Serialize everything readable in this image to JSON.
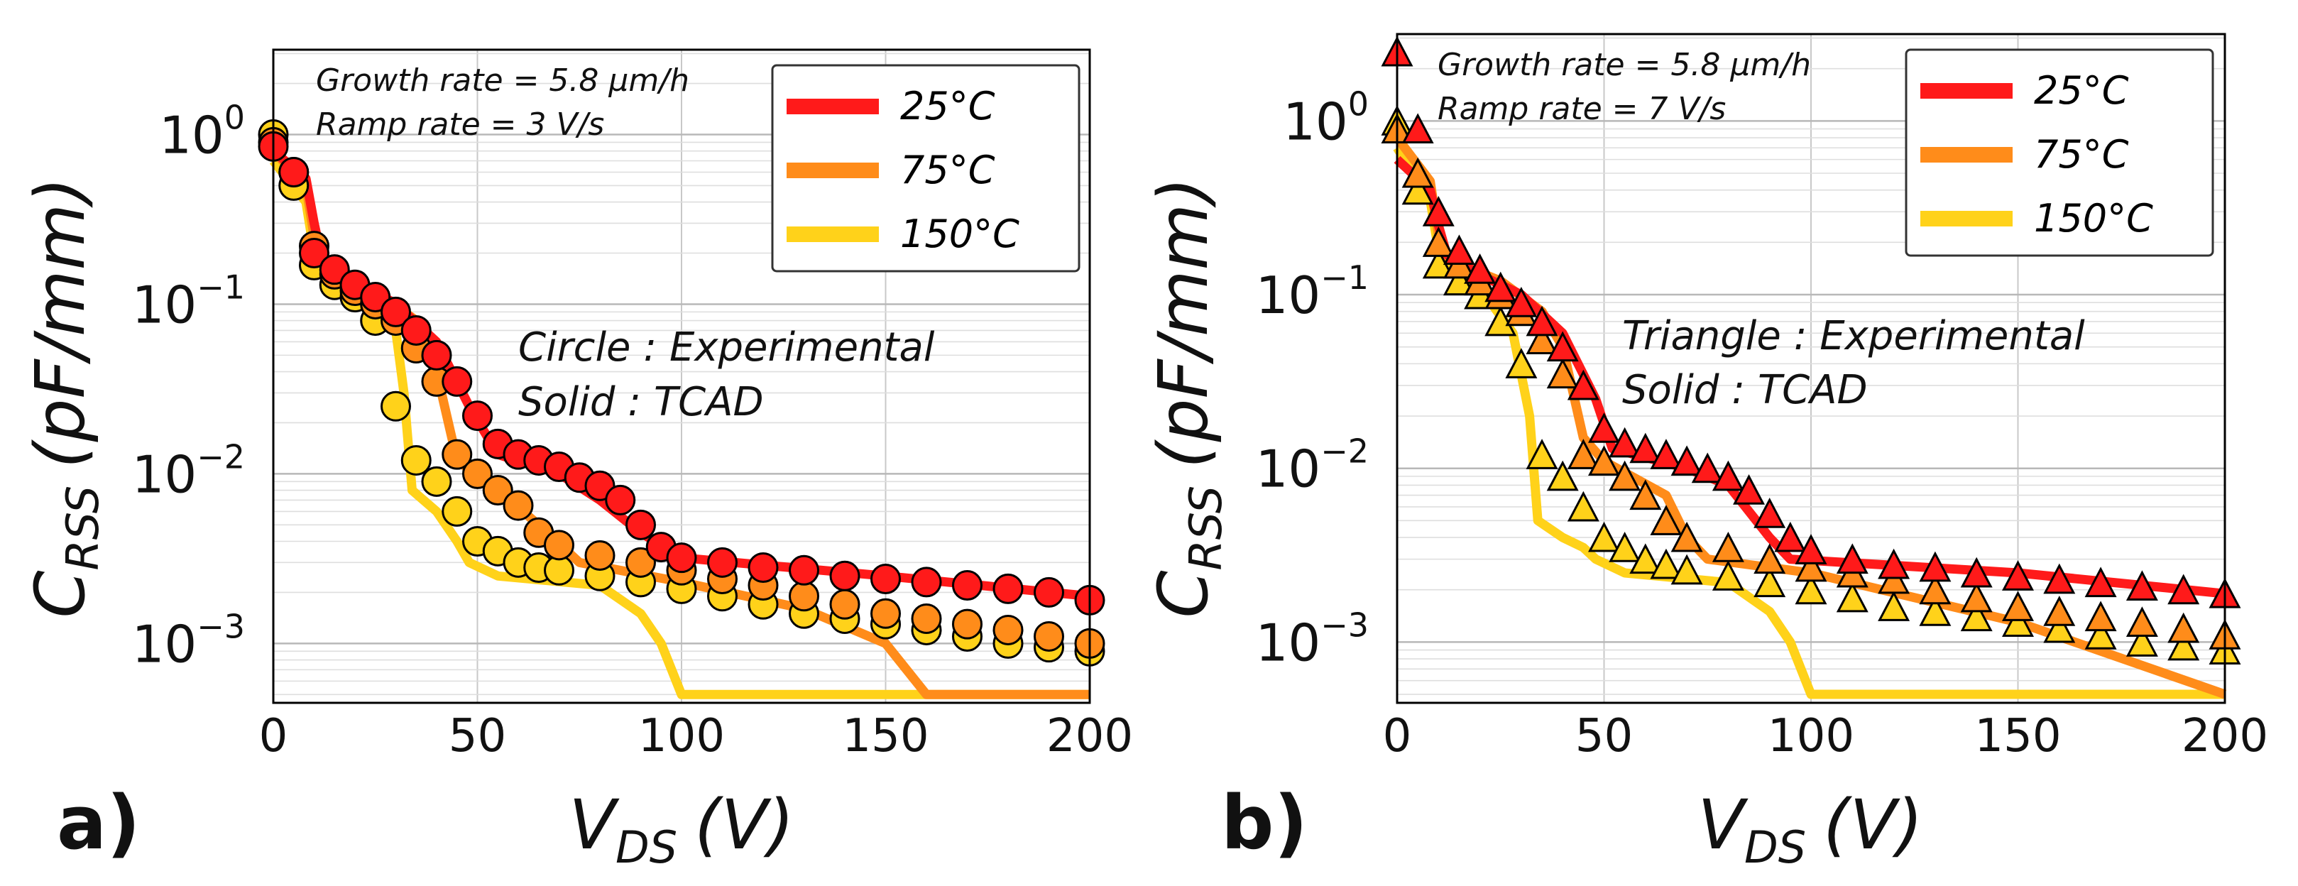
{
  "chart_data": [
    {
      "type": "line",
      "panel_label": "a)",
      "ylabel_main": "C",
      "ylabel_sub": "RSS",
      "ylabel_unit": "(pF/mm)",
      "xlabel_main": "V",
      "xlabel_sub": "DS",
      "xlabel_unit": "(V)",
      "xlim": [
        0,
        200
      ],
      "ylim_log10": [
        -3.35,
        0.5
      ],
      "xticks": [
        0,
        50,
        100,
        150,
        200
      ],
      "xtick_labels": [
        "0",
        "50",
        "100",
        "150",
        "200"
      ],
      "ytick_exps": [
        0,
        -1,
        -2,
        -3
      ],
      "ytick_labels": [
        {
          "base": "10",
          "exp": "0"
        },
        {
          "base": "10",
          "exp": "−1"
        },
        {
          "base": "10",
          "exp": "−2"
        },
        {
          "base": "10",
          "exp": "−3"
        }
      ],
      "info_lines": [
        "Growth rate = 5.8 μm/h",
        "Ramp rate = 3 V/s"
      ],
      "annotation_lines": [
        "Circle : Experimental",
        "Solid : TCAD"
      ],
      "marker": "circle",
      "legend_position": "top-right",
      "series": [
        {
          "name": "25°C",
          "color": "#ff1a1a",
          "tcad": {
            "x": [
              0,
              8,
              10,
              12,
              20,
              30,
              40,
              48,
              55,
              70,
              80,
              90,
              100,
              150,
              200
            ],
            "y": [
              0.8,
              0.55,
              0.3,
              0.18,
              0.14,
              0.1,
              0.06,
              0.025,
              0.013,
              0.01,
              0.007,
              0.0045,
              0.0032,
              0.0025,
              0.0019
            ]
          },
          "exp": {
            "x": [
              0,
              5,
              10,
              15,
              20,
              25,
              30,
              35,
              40,
              45,
              50,
              55,
              60,
              65,
              70,
              75,
              80,
              85,
              90,
              95,
              100,
              110,
              120,
              130,
              140,
              150,
              160,
              170,
              180,
              190,
              200
            ],
            "y": [
              0.85,
              0.6,
              0.2,
              0.16,
              0.13,
              0.11,
              0.09,
              0.07,
              0.05,
              0.035,
              0.022,
              0.015,
              0.013,
              0.012,
              0.011,
              0.0095,
              0.0085,
              0.007,
              0.005,
              0.0037,
              0.0032,
              0.003,
              0.0028,
              0.0027,
              0.0025,
              0.0024,
              0.0023,
              0.0022,
              0.0021,
              0.002,
              0.0018
            ]
          }
        },
        {
          "name": "75°C",
          "color": "#ff8c1a",
          "tcad": {
            "x": [
              0,
              8,
              10,
              12,
              25,
              35,
              40,
              45,
              55,
              65,
              75,
              100,
              130,
              150,
              160,
              200
            ],
            "y": [
              0.8,
              0.5,
              0.25,
              0.17,
              0.12,
              0.08,
              0.04,
              0.012,
              0.008,
              0.005,
              0.003,
              0.0023,
              0.0016,
              0.001,
              0.0005,
              0.0005
            ]
          },
          "exp": {
            "x": [
              0,
              5,
              10,
              15,
              20,
              25,
              30,
              35,
              40,
              45,
              50,
              55,
              60,
              65,
              70,
              80,
              90,
              100,
              110,
              120,
              130,
              140,
              150,
              160,
              170,
              180,
              190,
              200
            ],
            "y": [
              0.9,
              0.6,
              0.22,
              0.15,
              0.12,
              0.1,
              0.08,
              0.055,
              0.035,
              0.013,
              0.01,
              0.008,
              0.0065,
              0.0045,
              0.0038,
              0.0033,
              0.003,
              0.0027,
              0.0024,
              0.0022,
              0.0019,
              0.0017,
              0.0015,
              0.0014,
              0.0013,
              0.0012,
              0.0011,
              0.001
            ]
          }
        },
        {
          "name": "150°C",
          "color": "#ffd21a",
          "tcad": {
            "x": [
              0,
              8,
              10,
              12,
              20,
              30,
              32,
              34,
              40,
              45,
              48,
              55,
              80,
              90,
              95,
              100,
              200
            ],
            "y": [
              0.7,
              0.4,
              0.2,
              0.16,
              0.12,
              0.07,
              0.03,
              0.008,
              0.006,
              0.004,
              0.003,
              0.0025,
              0.0022,
              0.0015,
              0.001,
              0.0005,
              0.0005
            ]
          },
          "exp": {
            "x": [
              0,
              5,
              10,
              15,
              20,
              25,
              30,
              35,
              40,
              45,
              50,
              55,
              60,
              65,
              70,
              80,
              90,
              100,
              110,
              120,
              130,
              140,
              150,
              160,
              170,
              180,
              190,
              200
            ],
            "y": [
              1.0,
              0.5,
              0.17,
              0.13,
              0.11,
              0.08,
              0.025,
              0.012,
              0.009,
              0.006,
              0.004,
              0.0035,
              0.003,
              0.0028,
              0.0027,
              0.0025,
              0.0023,
              0.0021,
              0.0019,
              0.0017,
              0.0015,
              0.0014,
              0.0013,
              0.0012,
              0.0011,
              0.001,
              0.00095,
              0.0009
            ]
          }
        }
      ]
    },
    {
      "type": "line",
      "panel_label": "b)",
      "ylabel_main": "C",
      "ylabel_sub": "RSS",
      "ylabel_unit": "(pF/mm)",
      "xlabel_main": "V",
      "xlabel_sub": "DS",
      "xlabel_unit": "(V)",
      "xlim": [
        0,
        200
      ],
      "ylim_log10": [
        -3.35,
        0.5
      ],
      "xticks": [
        0,
        50,
        100,
        150,
        200
      ],
      "xtick_labels": [
        "0",
        "50",
        "100",
        "150",
        "200"
      ],
      "ytick_exps": [
        0,
        -1,
        -2,
        -3
      ],
      "ytick_labels": [
        {
          "base": "10",
          "exp": "0"
        },
        {
          "base": "10",
          "exp": "−1"
        },
        {
          "base": "10",
          "exp": "−2"
        },
        {
          "base": "10",
          "exp": "−3"
        }
      ],
      "info_lines": [
        "Growth rate = 5.8 μm/h",
        "Ramp rate = 7 V/s"
      ],
      "annotation_lines": [
        "Triangle : Experimental",
        "Solid : TCAD"
      ],
      "marker": "triangle",
      "legend_position": "top-right",
      "series": [
        {
          "name": "25°C",
          "color": "#ff1a1a",
          "tcad": {
            "x": [
              0,
              8,
              10,
              12,
              20,
              30,
              40,
              48,
              52,
              70,
              80,
              90,
              95,
              150,
              200
            ],
            "y": [
              0.6,
              0.4,
              0.25,
              0.17,
              0.13,
              0.1,
              0.06,
              0.025,
              0.013,
              0.01,
              0.008,
              0.004,
              0.003,
              0.0025,
              0.0019
            ]
          },
          "exp": {
            "x": [
              0,
              5,
              10,
              15,
              20,
              25,
              30,
              35,
              40,
              45,
              50,
              55,
              60,
              65,
              70,
              75,
              80,
              85,
              90,
              95,
              100,
              110,
              120,
              130,
              140,
              150,
              160,
              170,
              180,
              190,
              200
            ],
            "y": [
              2.5,
              0.9,
              0.3,
              0.18,
              0.14,
              0.11,
              0.09,
              0.07,
              0.05,
              0.03,
              0.017,
              0.014,
              0.013,
              0.012,
              0.011,
              0.01,
              0.009,
              0.0075,
              0.0055,
              0.004,
              0.0034,
              0.003,
              0.0028,
              0.0027,
              0.0025,
              0.0024,
              0.0023,
              0.0022,
              0.0021,
              0.002,
              0.0019
            ]
          }
        },
        {
          "name": "75°C",
          "color": "#ff8c1a",
          "tcad": {
            "x": [
              0,
              8,
              10,
              12,
              25,
              35,
              40,
              45,
              50,
              65,
              70,
              75,
              100,
              150,
              200
            ],
            "y": [
              0.8,
              0.45,
              0.22,
              0.16,
              0.12,
              0.08,
              0.05,
              0.015,
              0.011,
              0.007,
              0.004,
              0.003,
              0.0025,
              0.0013,
              0.0005
            ]
          },
          "exp": {
            "x": [
              0,
              5,
              10,
              15,
              20,
              25,
              30,
              35,
              40,
              45,
              50,
              55,
              60,
              65,
              70,
              80,
              90,
              100,
              110,
              120,
              130,
              140,
              150,
              160,
              170,
              180,
              190,
              200
            ],
            "y": [
              0.9,
              0.5,
              0.2,
              0.15,
              0.12,
              0.1,
              0.08,
              0.055,
              0.035,
              0.012,
              0.011,
              0.009,
              0.007,
              0.005,
              0.004,
              0.0035,
              0.003,
              0.0027,
              0.0025,
              0.0023,
              0.002,
              0.0018,
              0.0016,
              0.0015,
              0.0014,
              0.0013,
              0.0012,
              0.0011
            ]
          }
        },
        {
          "name": "150°C",
          "color": "#ffd21a",
          "tcad": {
            "x": [
              0,
              8,
              10,
              12,
              20,
              28,
              32,
              34,
              40,
              45,
              48,
              55,
              80,
              90,
              95,
              100,
              200
            ],
            "y": [
              0.7,
              0.35,
              0.18,
              0.14,
              0.11,
              0.06,
              0.02,
              0.005,
              0.004,
              0.0035,
              0.003,
              0.0025,
              0.0022,
              0.0015,
              0.001,
              0.0005,
              0.0005
            ]
          },
          "exp": {
            "x": [
              0,
              5,
              10,
              15,
              20,
              25,
              30,
              35,
              40,
              45,
              50,
              55,
              60,
              65,
              70,
              80,
              90,
              100,
              110,
              120,
              130,
              140,
              150,
              160,
              170,
              180,
              190,
              200
            ],
            "y": [
              1.0,
              0.4,
              0.15,
              0.12,
              0.1,
              0.07,
              0.04,
              0.012,
              0.009,
              0.006,
              0.004,
              0.0035,
              0.003,
              0.0028,
              0.0026,
              0.0024,
              0.0022,
              0.002,
              0.0018,
              0.0016,
              0.0015,
              0.0014,
              0.0013,
              0.0012,
              0.0011,
              0.001,
              0.00095,
              0.0009
            ]
          }
        }
      ]
    }
  ]
}
